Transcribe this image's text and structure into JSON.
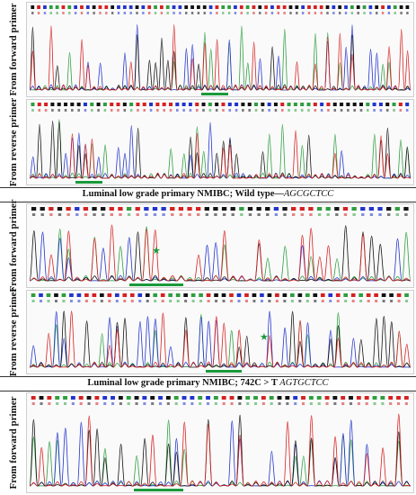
{
  "panels": [
    {
      "id": "p1",
      "label": "From forward primer"
    },
    {
      "id": "p2",
      "label": "From reverse primer"
    },
    {
      "id": "p3",
      "label": "From forward primer"
    },
    {
      "id": "p4",
      "label": "From reverse primer"
    },
    {
      "id": "p5",
      "label": "From forward primer"
    }
  ],
  "captions": {
    "wild_type_prefix": "Luminal low grade primary NMIBC; Wild type—",
    "wild_type_seq": "AGCGCTCC",
    "mutant_prefix": "Luminal low grade primary NMIBC; 742C > T ",
    "mutant_seq": "AGTGCTCC"
  },
  "colors": {
    "A": "#2e9e3f",
    "C": "#2233cc",
    "G": "#111111",
    "T": "#d62020",
    "highlight": "#1a9a3a"
  },
  "icons": {
    "mutation_marker": "star-icon"
  }
}
